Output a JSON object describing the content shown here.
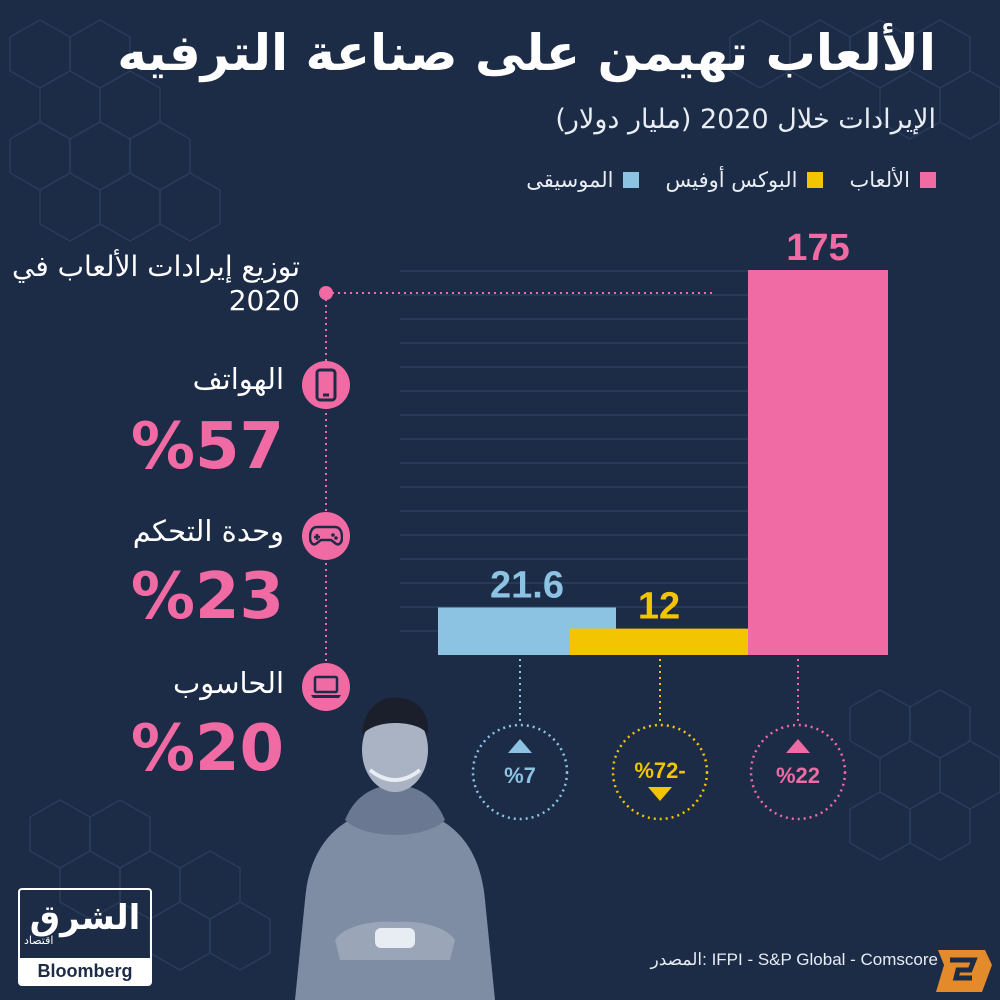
{
  "title": "الألعاب تهيمن على صناعة الترفيه",
  "subtitle": "الإيرادات خلال 2020 (مليار دولار)",
  "legend": [
    {
      "label": "الألعاب",
      "color": "#f06aa3"
    },
    {
      "label": "البوكس أوفيس",
      "color": "#f2c500"
    },
    {
      "label": "الموسيقى",
      "color": "#8cc3e2"
    }
  ],
  "games_distribution": {
    "title": "توزيع إيرادات الألعاب في 2020",
    "items": [
      {
        "label": "الهواتف",
        "value": "%57",
        "icon": "smartphone-icon"
      },
      {
        "label": "وحدة التحكم",
        "value": "%23",
        "icon": "gamepad-icon"
      },
      {
        "label": "الحاسوب",
        "value": "%20",
        "icon": "laptop-icon"
      }
    ]
  },
  "chart_data": {
    "type": "bar",
    "categories": [
      "الموسيقى",
      "البوكس أوفيس",
      "الألعاب"
    ],
    "values": [
      21.6,
      12,
      175
    ],
    "value_labels": [
      "21.6",
      "12",
      "175"
    ],
    "colors": [
      "#8cc3e2",
      "#f2c500",
      "#f06aa3"
    ],
    "changes": [
      {
        "label": "%7",
        "direction": "up"
      },
      {
        "label": "%72-",
        "direction": "down"
      },
      {
        "label": "%22",
        "direction": "up"
      }
    ],
    "grid": true,
    "ylim": [
      0,
      175
    ]
  },
  "source": "المصدر: IFPI - S&P Global - Comscore",
  "logo": {
    "arabic": "الشرق",
    "sub": "اقتصاد",
    "partner": "Bloomberg"
  },
  "colors": {
    "background": "#1c2b46",
    "accent": "#f06aa3"
  }
}
